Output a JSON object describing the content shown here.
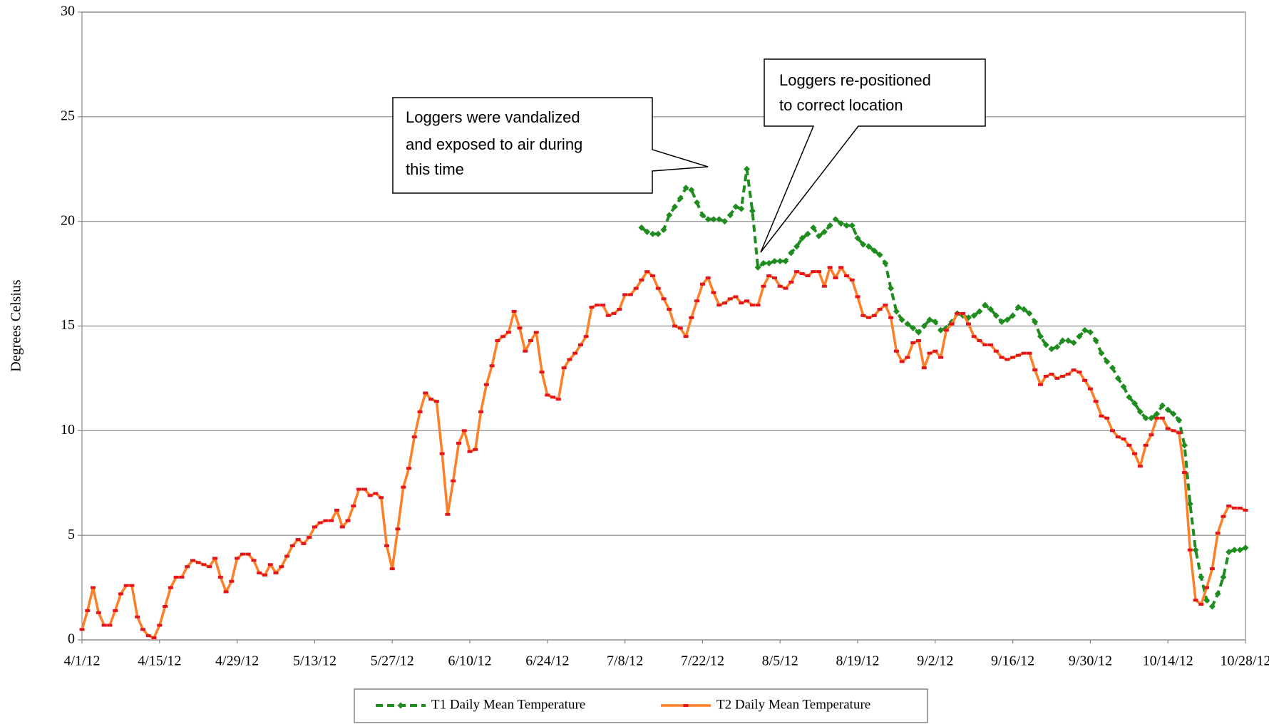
{
  "chart_data": {
    "type": "line",
    "y_label": "Degrees Celsius",
    "x": [
      "4/1/12",
      "4/2/12",
      "4/3/12",
      "4/4/12",
      "4/5/12",
      "4/6/12",
      "4/7/12",
      "4/8/12",
      "4/9/12",
      "4/10/12",
      "4/11/12",
      "4/12/12",
      "4/13/12",
      "4/14/12",
      "4/15/12",
      "4/16/12",
      "4/17/12",
      "4/18/12",
      "4/19/12",
      "4/20/12",
      "4/21/12",
      "4/22/12",
      "4/23/12",
      "4/24/12",
      "4/25/12",
      "4/26/12",
      "4/27/12",
      "4/28/12",
      "4/29/12",
      "4/30/12",
      "5/1/12",
      "5/2/12",
      "5/3/12",
      "5/4/12",
      "5/5/12",
      "5/6/12",
      "5/7/12",
      "5/8/12",
      "5/9/12",
      "5/10/12",
      "5/11/12",
      "5/12/12",
      "5/13/12",
      "5/14/12",
      "5/15/12",
      "5/16/12",
      "5/17/12",
      "5/18/12",
      "5/19/12",
      "5/20/12",
      "5/21/12",
      "5/22/12",
      "5/23/12",
      "5/24/12",
      "5/25/12",
      "5/26/12",
      "5/27/12",
      "5/28/12",
      "5/29/12",
      "5/30/12",
      "5/31/12",
      "6/1/12",
      "6/2/12",
      "6/3/12",
      "6/4/12",
      "6/5/12",
      "6/6/12",
      "6/7/12",
      "6/8/12",
      "6/9/12",
      "6/10/12",
      "6/11/12",
      "6/12/12",
      "6/13/12",
      "6/14/12",
      "6/15/12",
      "6/16/12",
      "6/17/12",
      "6/18/12",
      "6/19/12",
      "6/20/12",
      "6/21/12",
      "6/22/12",
      "6/23/12",
      "6/24/12",
      "6/25/12",
      "6/26/12",
      "6/27/12",
      "6/28/12",
      "6/29/12",
      "6/30/12",
      "7/1/12",
      "7/2/12",
      "7/3/12",
      "7/4/12",
      "7/5/12",
      "7/6/12",
      "7/7/12",
      "7/8/12",
      "7/9/12",
      "7/10/12",
      "7/11/12",
      "7/12/12",
      "7/13/12",
      "7/14/12",
      "7/15/12",
      "7/16/12",
      "7/17/12",
      "7/18/12",
      "7/19/12",
      "7/20/12",
      "7/21/12",
      "7/22/12",
      "7/23/12",
      "7/24/12",
      "7/25/12",
      "7/26/12",
      "7/27/12",
      "7/28/12",
      "7/29/12",
      "7/30/12",
      "7/31/12",
      "8/1/12",
      "8/2/12",
      "8/3/12",
      "8/4/12",
      "8/5/12",
      "8/6/12",
      "8/7/12",
      "8/8/12",
      "8/9/12",
      "8/10/12",
      "8/11/12",
      "8/12/12",
      "8/13/12",
      "8/14/12",
      "8/15/12",
      "8/16/12",
      "8/17/12",
      "8/18/12",
      "8/19/12",
      "8/20/12",
      "8/21/12",
      "8/22/12",
      "8/23/12",
      "8/24/12",
      "8/25/12",
      "8/26/12",
      "8/27/12",
      "8/28/12",
      "8/29/12",
      "8/30/12",
      "8/31/12",
      "9/1/12",
      "9/2/12",
      "9/3/12",
      "9/4/12",
      "9/5/12",
      "9/6/12",
      "9/7/12",
      "9/8/12",
      "9/9/12",
      "9/10/12",
      "9/11/12",
      "9/12/12",
      "9/13/12",
      "9/14/12",
      "9/15/12",
      "9/16/12",
      "9/17/12",
      "9/18/12",
      "9/19/12",
      "9/20/12",
      "9/21/12",
      "9/22/12",
      "9/23/12",
      "9/24/12",
      "9/25/12",
      "9/26/12",
      "9/27/12",
      "9/28/12",
      "9/29/12",
      "9/30/12",
      "10/1/12",
      "10/2/12",
      "10/3/12",
      "10/4/12",
      "10/5/12",
      "10/6/12",
      "10/7/12",
      "10/8/12",
      "10/9/12",
      "10/10/12",
      "10/11/12",
      "10/12/12",
      "10/13/12",
      "10/14/12",
      "10/15/12",
      "10/16/12",
      "10/17/12",
      "10/18/12",
      "10/19/12",
      "10/20/12",
      "10/21/12",
      "10/22/12",
      "10/23/12",
      "10/24/12",
      "10/25/12",
      "10/26/12",
      "10/27/12",
      "10/28/12"
    ],
    "series": [
      {
        "name": "T1 Daily Mean Temperature",
        "color": "#1e8c1e",
        "marker_color": "#1e8c1e",
        "marker": "diamond",
        "dashed": true,
        "values": [
          null,
          null,
          null,
          null,
          null,
          null,
          null,
          null,
          null,
          null,
          null,
          null,
          null,
          null,
          null,
          null,
          null,
          null,
          null,
          null,
          null,
          null,
          null,
          null,
          null,
          null,
          null,
          null,
          null,
          null,
          null,
          null,
          null,
          null,
          null,
          null,
          null,
          null,
          null,
          null,
          null,
          null,
          null,
          null,
          null,
          null,
          null,
          null,
          null,
          null,
          null,
          null,
          null,
          null,
          null,
          null,
          null,
          null,
          null,
          null,
          null,
          null,
          null,
          null,
          null,
          null,
          null,
          null,
          null,
          null,
          null,
          null,
          null,
          null,
          null,
          null,
          null,
          null,
          null,
          null,
          null,
          null,
          null,
          null,
          null,
          null,
          null,
          null,
          null,
          null,
          null,
          null,
          null,
          null,
          null,
          null,
          null,
          null,
          null,
          null,
          null,
          19.7,
          19.5,
          19.4,
          19.4,
          19.6,
          20.3,
          20.7,
          21.1,
          21.6,
          21.5,
          20.9,
          20.3,
          20.1,
          20.1,
          20.1,
          20.0,
          20.3,
          20.7,
          20.6,
          22.5,
          20.5,
          17.8,
          18.0,
          18.0,
          18.1,
          18.1,
          18.1,
          18.5,
          18.8,
          19.2,
          19.4,
          19.7,
          19.3,
          19.5,
          19.8,
          20.1,
          19.9,
          19.8,
          19.8,
          19.2,
          18.9,
          18.8,
          18.6,
          18.4,
          18.0,
          16.8,
          15.7,
          15.3,
          15.1,
          14.9,
          14.7,
          15.0,
          15.3,
          15.2,
          14.8,
          14.9,
          15.2,
          15.6,
          15.5,
          15.4,
          15.5,
          15.7,
          16.0,
          15.8,
          15.5,
          15.2,
          15.3,
          15.5,
          15.9,
          15.8,
          15.6,
          15.2,
          14.5,
          14.1,
          13.9,
          14.0,
          14.3,
          14.3,
          14.2,
          14.5,
          14.8,
          14.7,
          14.3,
          13.7,
          13.3,
          13.0,
          12.5,
          12.1,
          11.6,
          11.3,
          10.9,
          10.6,
          10.6,
          10.8,
          11.2,
          11.0,
          10.8,
          10.5,
          9.3,
          6.5,
          4.3,
          3.0,
          1.9,
          1.6,
          2.2,
          3.0,
          4.2,
          4.3,
          4.3,
          4.4
        ]
      },
      {
        "name": "T2 Daily Mean Temperature",
        "color": "#ff7f27",
        "marker_color": "#e3141b",
        "marker": "dash",
        "dashed": false,
        "values": [
          0.5,
          1.4,
          2.5,
          1.3,
          0.7,
          0.7,
          1.4,
          2.2,
          2.6,
          2.6,
          1.1,
          0.5,
          0.2,
          0.1,
          0.7,
          1.6,
          2.5,
          3.0,
          3.0,
          3.5,
          3.8,
          3.7,
          3.6,
          3.5,
          3.9,
          3.0,
          2.3,
          2.8,
          3.9,
          4.1,
          4.1,
          3.8,
          3.2,
          3.1,
          3.6,
          3.2,
          3.5,
          4.0,
          4.5,
          4.8,
          4.6,
          4.9,
          5.4,
          5.6,
          5.7,
          5.7,
          6.2,
          5.4,
          5.7,
          6.4,
          7.2,
          7.2,
          6.9,
          7.0,
          6.8,
          4.5,
          3.4,
          5.3,
          7.3,
          8.2,
          9.7,
          10.9,
          11.8,
          11.5,
          11.4,
          8.9,
          6.0,
          7.6,
          9.4,
          10.0,
          9.0,
          9.1,
          10.9,
          12.2,
          13.1,
          14.3,
          14.5,
          14.7,
          15.7,
          14.9,
          13.8,
          14.3,
          14.7,
          12.8,
          11.7,
          11.6,
          11.5,
          13.0,
          13.4,
          13.7,
          14.1,
          14.5,
          15.9,
          16.0,
          16.0,
          15.5,
          15.6,
          15.8,
          16.5,
          16.5,
          16.8,
          17.2,
          17.6,
          17.4,
          16.8,
          16.3,
          15.8,
          15.0,
          14.9,
          14.5,
          15.4,
          16.2,
          17.0,
          17.3,
          16.6,
          16.0,
          16.1,
          16.3,
          16.4,
          16.1,
          16.2,
          16.0,
          16.0,
          16.9,
          17.4,
          17.3,
          16.9,
          16.8,
          17.1,
          17.6,
          17.5,
          17.4,
          17.6,
          17.6,
          16.9,
          17.8,
          17.3,
          17.8,
          17.4,
          17.2,
          16.4,
          15.5,
          15.4,
          15.5,
          15.8,
          16.0,
          15.4,
          13.8,
          13.3,
          13.5,
          14.2,
          14.3,
          13.0,
          13.7,
          13.8,
          13.5,
          14.8,
          15.1,
          15.6,
          15.6,
          15.1,
          14.5,
          14.3,
          14.1,
          14.1,
          13.8,
          13.5,
          13.4,
          13.5,
          13.6,
          13.7,
          13.7,
          12.9,
          12.2,
          12.6,
          12.7,
          12.5,
          12.6,
          12.7,
          12.9,
          12.8,
          12.4,
          12.0,
          11.4,
          10.7,
          10.6,
          10.0,
          9.7,
          9.6,
          9.3,
          8.9,
          8.3,
          9.3,
          9.8,
          10.6,
          10.6,
          10.1,
          10.0,
          9.9,
          8.0,
          4.3,
          1.9,
          1.7,
          2.5,
          3.4,
          5.1,
          5.9,
          6.4,
          6.3,
          6.3,
          6.2
        ]
      }
    ],
    "xlim": [
      "4/1/12",
      "10/28/12"
    ],
    "xticks": [
      "4/1/12",
      "4/15/12",
      "4/29/12",
      "5/13/12",
      "5/27/12",
      "6/10/12",
      "6/24/12",
      "7/8/12",
      "7/22/12",
      "8/5/12",
      "8/19/12",
      "9/2/12",
      "9/16/12",
      "9/30/12",
      "10/14/12",
      "10/28/12"
    ],
    "ylim": [
      0,
      30
    ],
    "yticks": [
      0,
      5,
      10,
      15,
      20,
      25,
      30
    ],
    "grid": true,
    "legend_position": "bottom",
    "annotations": [
      {
        "lines": [
          "Loggers were vandalized",
          "and exposed to air during",
          "this time"
        ]
      },
      {
        "lines": [
          "Loggers re-positioned",
          "to correct location"
        ]
      }
    ]
  }
}
